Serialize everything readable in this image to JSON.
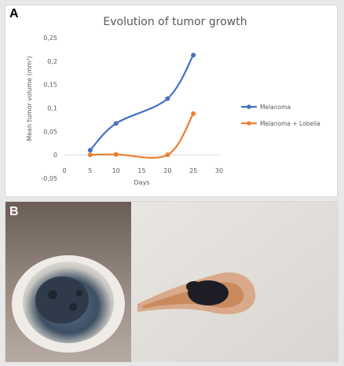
{
  "panels": {
    "a_label": "A",
    "b_label": "B"
  },
  "colors": {
    "melanoma": "#4472c4",
    "melanoma_lobelia": "#ed7d31",
    "axis": "#d9d9d9",
    "text": "#595959"
  },
  "chart_data": {
    "type": "line",
    "title": "Evolution of tumor growth",
    "xlabel": "Days",
    "ylabel": "Mean tumor volume (mm³)",
    "xlim": [
      0,
      30
    ],
    "ylim": [
      -0.05,
      0.25
    ],
    "x_ticks": [
      "0",
      "5",
      "10",
      "15",
      "20",
      "25",
      "30"
    ],
    "y_ticks": [
      "-0,05",
      "0",
      "0,05",
      "0,1",
      "0,15",
      "0,2",
      "0,25"
    ],
    "grid": false,
    "legend_position": "right",
    "series": [
      {
        "name": "Melanoma",
        "color": "#4472c4",
        "points": [
          [
            5,
            0.01
          ],
          [
            10,
            0.067
          ],
          [
            20,
            0.12
          ],
          [
            25,
            0.213
          ]
        ]
      },
      {
        "name": "Melanoma + Lobelia",
        "color": "#ed7d31",
        "points": [
          [
            5,
            0.0
          ],
          [
            10,
            0.001
          ],
          [
            20,
            0.0
          ],
          [
            25,
            0.088
          ]
        ]
      }
    ]
  }
}
